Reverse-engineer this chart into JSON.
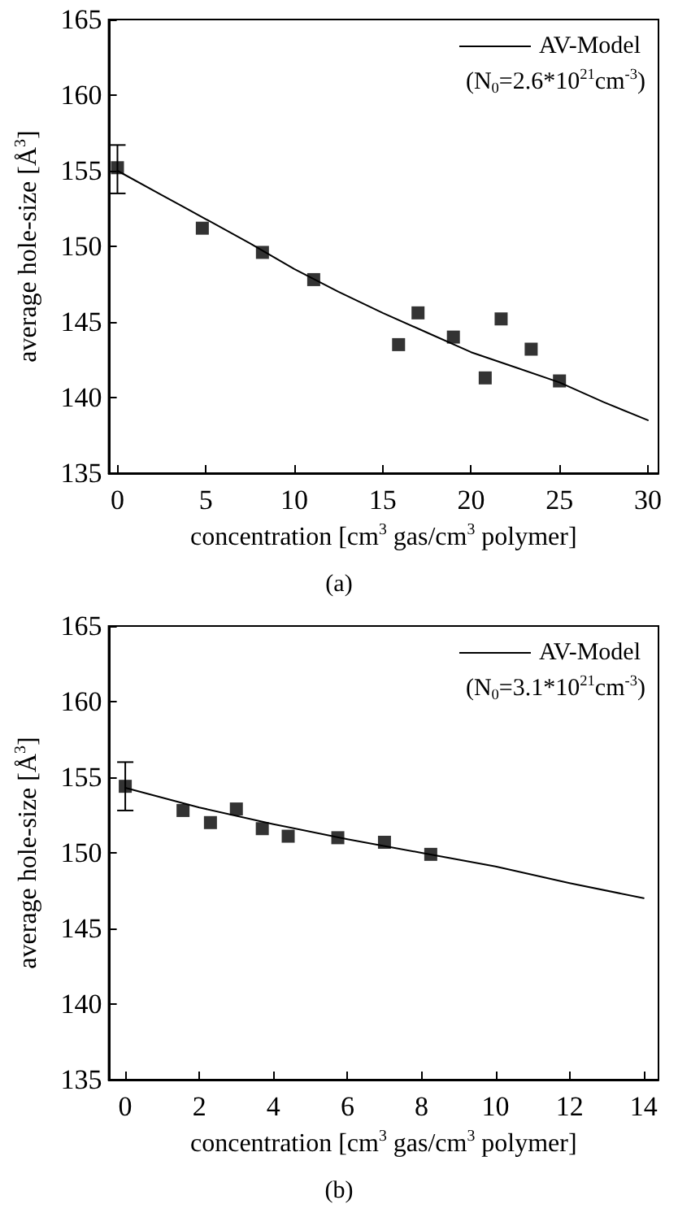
{
  "chart_data": [
    {
      "type": "scatter",
      "xlabel": "concentration [cm$^{3}$ gas/cm$^{3}$ polymer]",
      "ylabel": "average hole-size [Å$^{3}$]",
      "annotations": [
        "(N$_{0}$=2.6*10$^{21}$cm$^{-3}$)",
        "(a)"
      ],
      "xlim": [
        -0.5,
        30.6
      ],
      "xticks": [
        0,
        5,
        10,
        15,
        20,
        25,
        30
      ],
      "ylim": [
        135,
        165
      ],
      "yticks": [
        135,
        140,
        145,
        150,
        155,
        160,
        165
      ],
      "grid": false,
      "legend": "top right",
      "series": [
        {
          "type": "scatter",
          "color": "#000000",
          "marker": "square",
          "x": [
            0,
            4.8,
            8.2,
            11.1,
            15.9,
            17.0,
            19.0,
            20.8,
            21.7,
            23.4,
            25.0
          ],
          "values": [
            155.2,
            151.2,
            149.6,
            147.8,
            143.5,
            145.6,
            144.0,
            141.3,
            145.2,
            143.2,
            141.1
          ],
          "errors": [
            [
              153.5,
              156.7
            ],
            null,
            null,
            null,
            null,
            null,
            null,
            null,
            null,
            null,
            null
          ]
        },
        {
          "type": "line",
          "name": "AV-Model",
          "color": "#000000",
          "marker": "none",
          "line_style": "solid",
          "x": [
            0,
            2.5,
            5,
            7.5,
            10,
            12.5,
            15,
            17.5,
            20,
            22.5,
            25,
            27.5,
            30
          ],
          "values": [
            155.0,
            153.4,
            151.8,
            150.2,
            148.5,
            147.0,
            145.6,
            144.3,
            143.0,
            142.0,
            141.0,
            139.7,
            138.5
          ]
        }
      ]
    },
    {
      "type": "scatter",
      "xlabel": "concentration [cm$^{3}$ gas/cm$^{3}$ polymer]",
      "ylabel": "average hole-size [Å$^{3}$]",
      "annotations": [
        "(N$_{0}$=3.1*10$^{21}$cm$^{-3}$)",
        "(b)"
      ],
      "xlim": [
        -0.45,
        14.4
      ],
      "xticks": [
        0,
        2,
        4,
        6,
        8,
        10,
        12,
        14
      ],
      "ylim": [
        135,
        165
      ],
      "yticks": [
        135,
        140,
        145,
        150,
        155,
        160,
        165
      ],
      "grid": false,
      "legend": "top right",
      "series": [
        {
          "type": "scatter",
          "color": "#000000",
          "marker": "square",
          "x": [
            0,
            1.56,
            2.3,
            3.0,
            3.7,
            4.4,
            5.74,
            7.0,
            8.25
          ],
          "values": [
            154.4,
            152.8,
            152.0,
            152.9,
            151.6,
            151.1,
            151.0,
            150.7,
            149.9
          ],
          "errors": [
            [
              152.8,
              156.0
            ],
            null,
            null,
            null,
            null,
            null,
            null,
            null,
            null
          ]
        },
        {
          "type": "line",
          "name": "AV-Model",
          "color": "#000000",
          "marker": "none",
          "line_style": "solid",
          "x": [
            0,
            2,
            4,
            6,
            8,
            10,
            12,
            14
          ],
          "values": [
            154.3,
            153.0,
            151.9,
            150.9,
            150.0,
            149.1,
            148.0,
            147.0
          ]
        }
      ]
    }
  ]
}
